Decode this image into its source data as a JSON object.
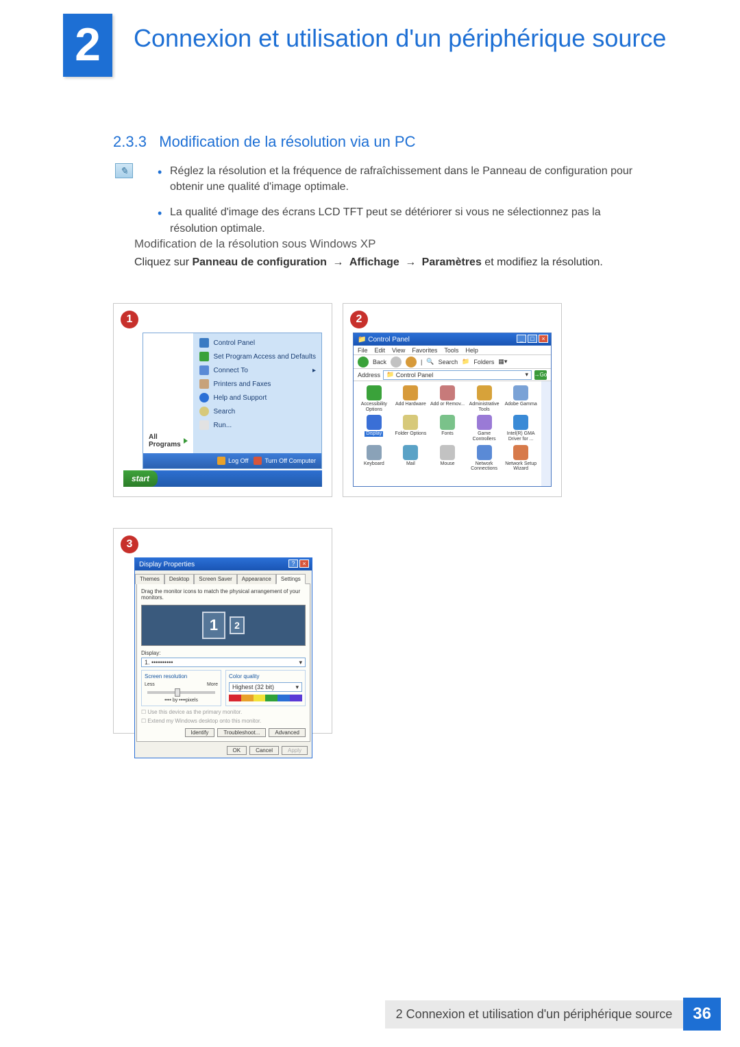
{
  "chapter": {
    "number": "2",
    "title": "Connexion et utilisation d'un périphérique source"
  },
  "section": {
    "number": "2.3.3",
    "title": "Modification de la résolution via un PC"
  },
  "notes": {
    "bullet1": "Réglez la résolution et la fréquence de rafraîchissement dans le Panneau de configuration pour obtenir une qualité d'image optimale.",
    "bullet2": "La qualité d'image des écrans LCD TFT peut se détériorer si vous ne sélectionnez pas la résolution optimale."
  },
  "subheading": "Modification de la résolution sous Windows XP",
  "instruction": {
    "prefix": "Cliquez sur ",
    "b1": "Panneau de configuration",
    "b2": "Affichage",
    "b3": "Paramètres",
    "suffix": " et modifiez la résolution."
  },
  "steps": {
    "s1": "1",
    "s2": "2",
    "s3": "3"
  },
  "startmenu": {
    "items": {
      "controlPanel": "Control Panel",
      "setProgram": "Set Program Access and Defaults",
      "connectTo": "Connect To",
      "printers": "Printers and Faxes",
      "help": "Help and Support",
      "search": "Search",
      "run": "Run..."
    },
    "allPrograms": "All Programs",
    "logOff": "Log Off",
    "turnOff": "Turn Off Computer",
    "start": "start"
  },
  "controlPanel": {
    "title": "Control Panel",
    "menus": [
      "File",
      "Edit",
      "View",
      "Favorites",
      "Tools",
      "Help"
    ],
    "toolbar": {
      "back": "Back",
      "search": "Search",
      "folders": "Folders"
    },
    "address": {
      "label": "Address",
      "value": "Control Panel",
      "go": "Go"
    },
    "icons": [
      {
        "label": "Accessibility Options",
        "color": "#3aa23a"
      },
      {
        "label": "Add Hardware",
        "color": "#d79a3a"
      },
      {
        "label": "Add or Remov...",
        "color": "#c77a7a"
      },
      {
        "label": "Administrative Tools",
        "color": "#d7a23a"
      },
      {
        "label": "Adobe Gamma",
        "color": "#7aa2d6"
      },
      {
        "label": "Display",
        "color": "#3a6fd6",
        "selected": true
      },
      {
        "label": "Folder Options",
        "color": "#d7c97a"
      },
      {
        "label": "Fonts",
        "color": "#7ac28a"
      },
      {
        "label": "Game Controllers",
        "color": "#9a7ad6"
      },
      {
        "label": "Intel(R) GMA Driver for ...",
        "color": "#3a8ad6"
      },
      {
        "label": "Keyboard",
        "color": "#8aa2b8"
      },
      {
        "label": "Mail",
        "color": "#5aa2c6"
      },
      {
        "label": "Mouse",
        "color": "#c2c2c2"
      },
      {
        "label": "Network Connections",
        "color": "#5a8ad6"
      },
      {
        "label": "Network Setup Wizard",
        "color": "#d77a4a"
      }
    ]
  },
  "displayProps": {
    "title": "Display Properties",
    "tabs": [
      "Themes",
      "Desktop",
      "Screen Saver",
      "Appearance",
      "Settings"
    ],
    "activeTab": "Settings",
    "desc": "Drag the monitor icons to match the physical arrangement of your monitors.",
    "mon1": "1",
    "mon2": "2",
    "displayLabel": "Display:",
    "displayValue": "1. ••••••••••",
    "resGroup": "Screen resolution",
    "less": "Less",
    "more": "More",
    "resText": "•••• by ••••pixels",
    "colorGroup": "Color quality",
    "colorValue": "Highest (32 bit)",
    "colorbar": [
      "#d8262f",
      "#e8a12a",
      "#f2e23a",
      "#2fa23a",
      "#2a6fd6",
      "#5a3ad6"
    ],
    "chk1": "Use this device as the primary monitor.",
    "chk2": "Extend my Windows desktop onto this monitor.",
    "btnIdentify": "Identify",
    "btnTrouble": "Troubleshoot...",
    "btnAdvanced": "Advanced",
    "btnOK": "OK",
    "btnCancel": "Cancel",
    "btnApply": "Apply"
  },
  "footer": {
    "text": "2 Connexion et utilisation d'un périphérique source",
    "page": "36"
  },
  "colors": {
    "accent": "#1d6fd4",
    "stepBadge": "#c7302b",
    "xpBlue": "#2a6fd6",
    "xpGreen": "#3da23a"
  }
}
